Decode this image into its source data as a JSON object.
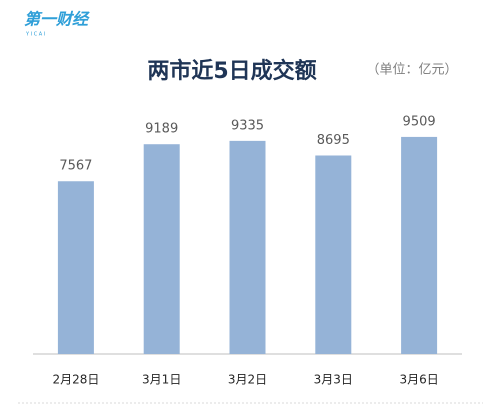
{
  "logo": "第一财经",
  "logo_tagline": "Y I C A I",
  "chart_data": {
    "type": "bar",
    "title": "两市近5日成交额",
    "subtitle": "（单位：亿元）",
    "categories": [
      "2月28日",
      "3月1日",
      "3月2日",
      "3月3日",
      "3月6日"
    ],
    "values": [
      7567,
      9189,
      9335,
      8695,
      9509
    ],
    "color": "#95b3d7"
  }
}
